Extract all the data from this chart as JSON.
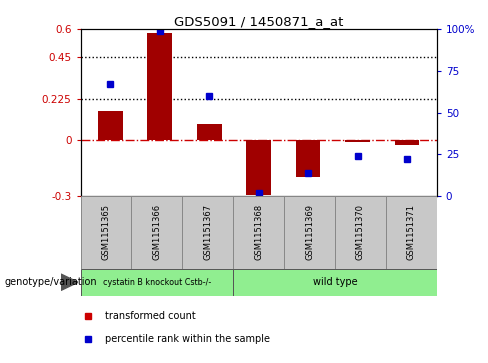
{
  "title": "GDS5091 / 1450871_a_at",
  "samples": [
    "GSM1151365",
    "GSM1151366",
    "GSM1151367",
    "GSM1151368",
    "GSM1151369",
    "GSM1151370",
    "GSM1151371"
  ],
  "transformed_count": [
    0.16,
    0.58,
    0.09,
    -0.295,
    -0.2,
    -0.01,
    -0.025
  ],
  "percentile_rank": [
    67,
    99,
    60,
    2,
    14,
    24,
    22
  ],
  "bar_color": "#a00000",
  "point_color": "#0000cc",
  "left_ylim": [
    -0.3,
    0.6
  ],
  "right_ylim": [
    0,
    100
  ],
  "left_yticks": [
    -0.3,
    0,
    0.225,
    0.45,
    0.6
  ],
  "left_yticklabels": [
    "-0.3",
    "0",
    "0.225",
    "0.45",
    "0.6"
  ],
  "right_yticks": [
    0,
    25,
    50,
    75,
    100
  ],
  "right_yticklabels": [
    "0",
    "25",
    "50",
    "75",
    "100%"
  ],
  "hline_y": 0,
  "hline_color": "#cc0000",
  "hline_style": "-.",
  "dotted_lines": [
    0.45,
    0.225
  ],
  "dotted_color": "black",
  "group1_label": "cystatin B knockout Cstb-/-",
  "group1_count": 3,
  "group2_label": "wild type",
  "group2_count": 4,
  "group_color": "#90ee90",
  "genotype_label": "genotype/variation",
  "legend_red_label": "transformed count",
  "legend_blue_label": "percentile rank within the sample",
  "bar_color_legend": "#cc0000",
  "point_color_legend": "#0000cc",
  "sample_box_color": "#c8c8c8",
  "bar_width": 0.5
}
